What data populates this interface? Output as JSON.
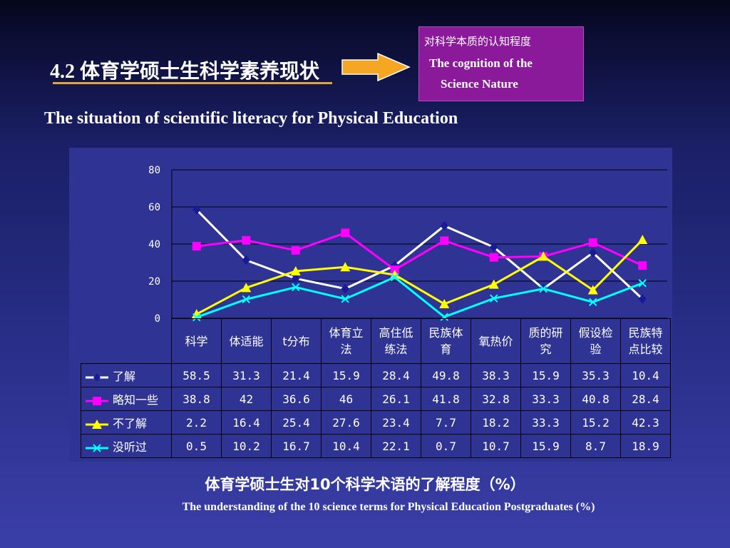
{
  "heading": {
    "title": "4.2 体育学硕士生科学素养现状",
    "subtitle": "The situation of scientific literacy for Physical Education"
  },
  "callout": {
    "cn": "对科学本质的认知程度",
    "en_line1": "The cognition of the",
    "en_line2": "Science Nature"
  },
  "chart_data": {
    "type": "line",
    "ylim": [
      0,
      80
    ],
    "yticks": [
      "80",
      "60",
      "40",
      "20",
      "0"
    ],
    "categories": [
      "科学",
      "体适能",
      "t分布",
      "体育立法",
      "高住低练法",
      "民族体育",
      "氧热价",
      "质的研究",
      "假设检验",
      "民族特点比较"
    ],
    "category_lines": [
      [
        "科学"
      ],
      [
        "体适能"
      ],
      [
        "t分布"
      ],
      [
        "体育立",
        "法"
      ],
      [
        "高住低",
        "练法"
      ],
      [
        "民族体",
        "育"
      ],
      [
        "氧热价"
      ],
      [
        "质的研",
        "究"
      ],
      [
        "假设检",
        "验"
      ],
      [
        "民族特",
        "点比较"
      ]
    ],
    "series": [
      {
        "name": "了解",
        "color": "#ffffff",
        "marker": "diamond",
        "marker_color": "#1a1a99",
        "values": [
          58.5,
          31.3,
          21.4,
          15.9,
          28.4,
          49.8,
          38.3,
          15.9,
          35.3,
          10.4
        ]
      },
      {
        "name": "略知一些",
        "color": "#ff00ff",
        "marker": "square",
        "marker_color": "#ff00ff",
        "values": [
          38.8,
          42,
          36.6,
          46,
          26.1,
          41.8,
          32.8,
          33.3,
          40.8,
          28.4
        ]
      },
      {
        "name": "不了解",
        "color": "#ffff00",
        "marker": "triangle",
        "marker_color": "#ffff00",
        "values": [
          2.2,
          16.4,
          25.4,
          27.6,
          23.4,
          7.7,
          18.2,
          33.3,
          15.2,
          42.3
        ]
      },
      {
        "name": "没听过",
        "color": "#00ffff",
        "marker": "x",
        "marker_color": "#00ffff",
        "values": [
          0.5,
          10.2,
          16.7,
          10.4,
          22.1,
          0.7,
          10.7,
          15.9,
          8.7,
          18.9
        ]
      }
    ],
    "table_values": [
      [
        "58.5",
        "31.3",
        "21.4",
        "15.9",
        "28.4",
        "49.8",
        "38.3",
        "15.9",
        "35.3",
        "10.4"
      ],
      [
        "38.8",
        "42",
        "36.6",
        "46",
        "26.1",
        "41.8",
        "32.8",
        "33.3",
        "40.8",
        "28.4"
      ],
      [
        "2.2",
        "16.4",
        "25.4",
        "27.6",
        "23.4",
        "7.7",
        "18.2",
        "33.3",
        "15.2",
        "42.3"
      ],
      [
        "0.5",
        "10.2",
        "16.7",
        "10.4",
        "22.1",
        "0.7",
        "10.7",
        "15.9",
        "8.7",
        "18.9"
      ]
    ],
    "plot_background": "#2e3394",
    "grid": true
  },
  "caption": {
    "cn": "体育学硕士生对10个科学术语的了解程度（%）",
    "en": "The understanding of the 10 science terms for Physical Education Postgraduates (%)"
  },
  "colors": {
    "accent_underline": "#e8a531",
    "arrow": "#f5a623",
    "callout_bg": "#8a1a9a"
  }
}
